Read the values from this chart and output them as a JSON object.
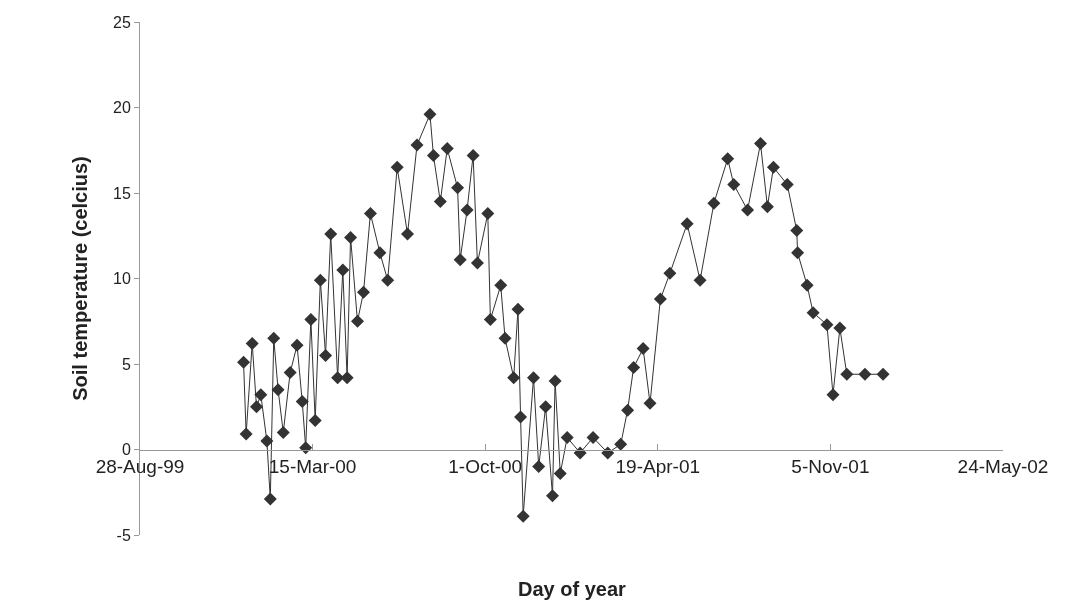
{
  "chart_data": {
    "type": "line",
    "xlabel": "Day of year",
    "ylabel": "Soil temperature (celcius)",
    "marker": "diamond",
    "line_style": "solid",
    "xlim": [
      "1999-08-28",
      "2002-05-24"
    ],
    "xticks": [
      {
        "value": "1999-08-28",
        "label": "28-Aug-99"
      },
      {
        "value": "2000-03-15",
        "label": "15-Mar-00"
      },
      {
        "value": "2000-10-01",
        "label": "1-Oct-00"
      },
      {
        "value": "2001-04-19",
        "label": "19-Apr-01"
      },
      {
        "value": "2001-11-05",
        "label": "5-Nov-01"
      },
      {
        "value": "2002-05-24",
        "label": "24-May-02"
      }
    ],
    "ylim": [
      -5,
      25
    ],
    "yticks": [
      -5,
      0,
      5,
      10,
      15,
      20,
      25
    ],
    "x": [
      "1999-12-26",
      "1999-12-29",
      "2000-01-05",
      "2000-01-10",
      "2000-01-15",
      "2000-01-22",
      "2000-01-26",
      "2000-01-30",
      "2000-02-04",
      "2000-02-10",
      "2000-02-18",
      "2000-02-26",
      "2000-03-03",
      "2000-03-07",
      "2000-03-13",
      "2000-03-18",
      "2000-03-24",
      "2000-03-30",
      "2000-04-05",
      "2000-04-13",
      "2000-04-19",
      "2000-04-24",
      "2000-04-28",
      "2000-05-06",
      "2000-05-13",
      "2000-05-21",
      "2000-06-01",
      "2000-06-10",
      "2000-06-21",
      "2000-07-03",
      "2000-07-14",
      "2000-07-29",
      "2000-08-02",
      "2000-08-10",
      "2000-08-18",
      "2000-08-30",
      "2000-09-02",
      "2000-09-10",
      "2000-09-17",
      "2000-09-22",
      "2000-10-04",
      "2000-10-07",
      "2000-10-19",
      "2000-10-24",
      "2000-11-03",
      "2000-11-08",
      "2000-11-11",
      "2000-11-14",
      "2000-11-26",
      "2000-12-02",
      "2000-12-10",
      "2000-12-18",
      "2000-12-21",
      "2000-12-27",
      "2001-01-04",
      "2001-01-19",
      "2001-02-03",
      "2001-02-20",
      "2001-03-07",
      "2001-03-15",
      "2001-03-22",
      "2001-04-02",
      "2001-04-10",
      "2001-04-22",
      "2001-05-03",
      "2001-05-23",
      "2001-06-07",
      "2001-06-23",
      "2001-07-09",
      "2001-07-16",
      "2001-08-01",
      "2001-08-16",
      "2001-08-24",
      "2001-08-31",
      "2001-09-16",
      "2001-09-27",
      "2001-09-28",
      "2001-10-09",
      "2001-10-16",
      "2001-11-01",
      "2001-11-08",
      "2001-11-16",
      "2001-11-24",
      "2001-12-15",
      "2002-01-05"
    ],
    "values": [
      5.1,
      0.9,
      6.2,
      2.5,
      3.2,
      0.5,
      -2.9,
      6.5,
      3.5,
      1.0,
      4.5,
      6.1,
      2.8,
      0.1,
      7.6,
      1.7,
      9.9,
      5.5,
      12.6,
      4.2,
      10.5,
      4.2,
      12.4,
      7.5,
      9.2,
      13.8,
      11.5,
      9.9,
      16.5,
      12.6,
      17.8,
      19.6,
      17.2,
      14.5,
      17.6,
      15.3,
      11.1,
      14.0,
      17.2,
      10.9,
      13.8,
      7.6,
      9.6,
      6.5,
      4.2,
      8.2,
      1.9,
      -3.9,
      4.2,
      -1.0,
      2.5,
      -2.7,
      4.0,
      -1.4,
      0.7,
      -0.2,
      0.7,
      -0.2,
      0.3,
      2.3,
      4.8,
      5.9,
      2.7,
      8.8,
      10.3,
      13.2,
      9.9,
      14.4,
      17.0,
      15.5,
      14.0,
      17.9,
      14.2,
      16.5,
      15.5,
      12.8,
      11.5,
      9.6,
      8.0,
      7.3,
      3.2,
      7.1,
      4.4,
      4.4,
      4.4
    ],
    "color": "#333333"
  }
}
